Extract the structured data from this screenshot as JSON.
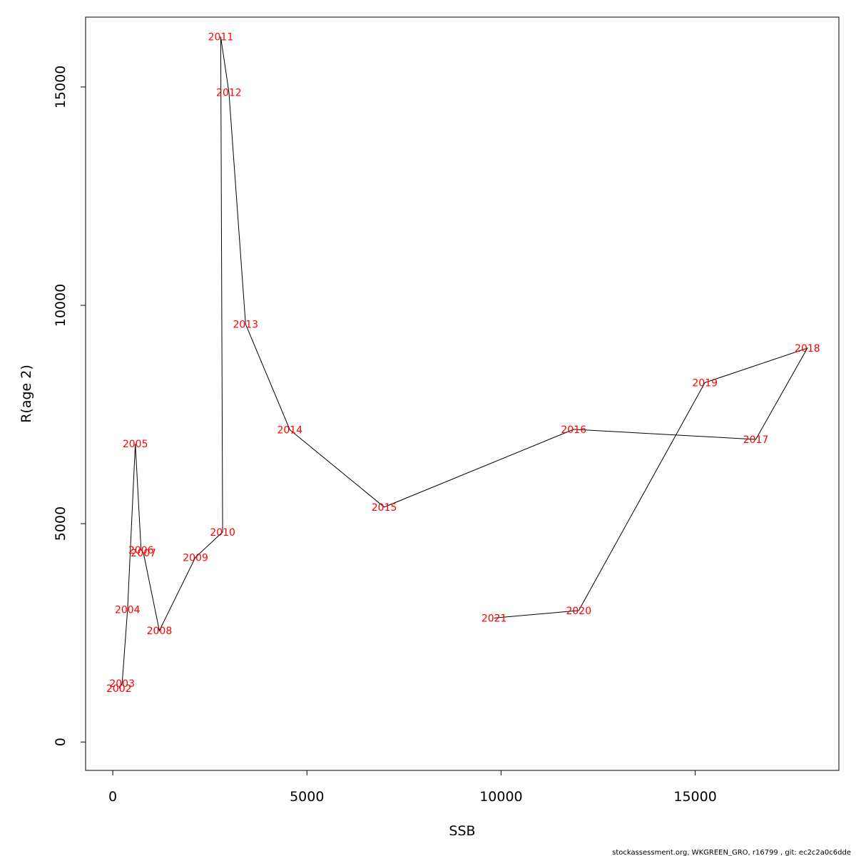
{
  "chart_data": {
    "type": "line",
    "xlabel": "SSB",
    "ylabel": "R(age 2)",
    "xlim": [
      -700,
      18700
    ],
    "ylim": [
      -650,
      16600
    ],
    "x_ticks": [
      0,
      5000,
      10000,
      15000
    ],
    "y_ticks": [
      0,
      5000,
      10000,
      15000
    ],
    "x_tick_labels": [
      "0",
      "5000",
      "10000",
      "15000"
    ],
    "y_tick_labels": [
      "0",
      "5000",
      "10000",
      "15000"
    ],
    "line_color": "#000000",
    "label_color": "#ff0000",
    "points": [
      {
        "label": "2002",
        "x": 160,
        "y": 1230
      },
      {
        "label": "2003",
        "x": 240,
        "y": 1340
      },
      {
        "label": "2004",
        "x": 380,
        "y": 3030
      },
      {
        "label": "2005",
        "x": 580,
        "y": 6830
      },
      {
        "label": "2006",
        "x": 730,
        "y": 4400
      },
      {
        "label": "2007",
        "x": 790,
        "y": 4330
      },
      {
        "label": "2008",
        "x": 1200,
        "y": 2550
      },
      {
        "label": "2009",
        "x": 2130,
        "y": 4230
      },
      {
        "label": "2010",
        "x": 2830,
        "y": 4810
      },
      {
        "label": "2011",
        "x": 2780,
        "y": 16150
      },
      {
        "label": "2012",
        "x": 2990,
        "y": 14880
      },
      {
        "label": "2013",
        "x": 3420,
        "y": 9570
      },
      {
        "label": "2014",
        "x": 4560,
        "y": 7150
      },
      {
        "label": "2015",
        "x": 6990,
        "y": 5380
      },
      {
        "label": "2016",
        "x": 11870,
        "y": 7160
      },
      {
        "label": "2017",
        "x": 16560,
        "y": 6930
      },
      {
        "label": "2018",
        "x": 17890,
        "y": 9020
      },
      {
        "label": "2019",
        "x": 15250,
        "y": 8230
      },
      {
        "label": "2020",
        "x": 12000,
        "y": 3010
      },
      {
        "label": "2021",
        "x": 9820,
        "y": 2840
      }
    ]
  },
  "footer": "stockassessment.org, WKGREEN_GRO, r16799 , git: ec2c2a0c6dde"
}
